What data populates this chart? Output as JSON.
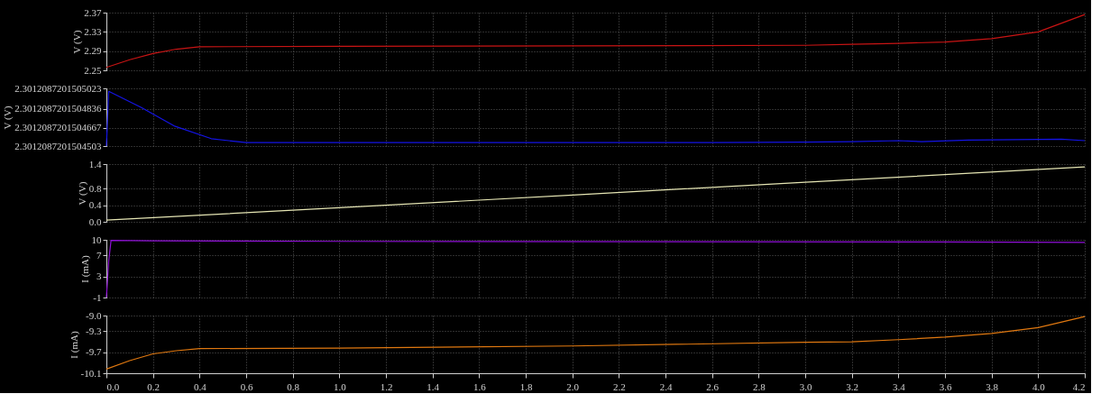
{
  "chart_data": [
    {
      "type": "line",
      "ylabel": "V (V)",
      "xlim": [
        0.0,
        4.2
      ],
      "xticks": [
        0.0,
        0.2,
        0.4,
        0.6,
        0.8,
        1.0,
        1.2,
        1.4,
        1.6,
        1.8,
        2.0,
        2.2,
        2.4,
        2.6,
        2.8,
        3.0,
        3.2,
        3.4,
        3.6,
        3.8,
        4.0,
        4.2
      ],
      "ylim": [
        2.25,
        2.37
      ],
      "yticks": [
        2.25,
        2.29,
        2.33,
        2.37
      ],
      "grid": true,
      "tick_labels": "y",
      "series": [
        {
          "color": "#c81414",
          "x": [
            0.0,
            0.1,
            0.2,
            0.3,
            0.4,
            1.0,
            2.0,
            3.0,
            3.2,
            3.4,
            3.6,
            3.8,
            4.0,
            4.2
          ],
          "values": [
            2.256,
            2.272,
            2.285,
            2.294,
            2.299,
            2.3,
            2.301,
            2.302,
            2.304,
            2.306,
            2.309,
            2.316,
            2.33,
            2.366
          ]
        }
      ]
    },
    {
      "type": "line",
      "ylabel": "V (V)",
      "xlim": [
        0.0,
        4.2
      ],
      "xticks": [
        0.0,
        0.2,
        0.4,
        0.6,
        0.8,
        1.0,
        1.2,
        1.4,
        1.6,
        1.8,
        2.0,
        2.2,
        2.4,
        2.6,
        2.8,
        3.0,
        3.2,
        3.4,
        3.6,
        3.8,
        4.0,
        4.2
      ],
      "ylim": [
        2.3012087201504503,
        2.3012087201505023
      ],
      "yticks": [
        {
          "value": 2.3012087201504503,
          "label": "2.3012087201504503"
        },
        {
          "value": 2.3012087201504667,
          "label": "2.3012087201504667"
        },
        {
          "value": 2.3012087201504836,
          "label": "2.3012087201504836"
        },
        {
          "value": 2.3012087201505023,
          "label": "2.3012087201505023"
        }
      ],
      "grid": true,
      "tick_labels": "y",
      "series": [
        {
          "color": "#1414e6",
          "x": [
            0.0,
            0.01,
            0.15,
            0.29,
            0.45,
            0.6,
            1.0,
            2.0,
            2.6,
            3.0,
            3.2,
            3.4,
            3.5,
            3.7,
            3.9,
            4.1,
            4.2
          ],
          "values": [
            2.3012087201504503,
            2.3012087201504996,
            2.301208720150485,
            2.3012087201504685,
            2.301208720150457,
            2.3012087201504534,
            2.3012087201504534,
            2.3012087201504534,
            2.3012087201504534,
            2.301208720150454,
            2.3012087201504543,
            2.301208720150455,
            2.3012087201504543,
            2.3012087201504556,
            2.301208720150456,
            2.3012087201504565,
            2.301208720150455
          ]
        }
      ]
    },
    {
      "type": "line",
      "ylabel": "V (V)",
      "xlim": [
        0.0,
        4.2
      ],
      "xticks": [
        0.0,
        0.2,
        0.4,
        0.6,
        0.8,
        1.0,
        1.2,
        1.4,
        1.6,
        1.8,
        2.0,
        2.2,
        2.4,
        2.6,
        2.8,
        3.0,
        3.2,
        3.4,
        3.6,
        3.8,
        4.0,
        4.2
      ],
      "ylim": [
        0.0,
        1.4
      ],
      "yticks": [
        {
          "value": 0,
          "label": "0.0"
        },
        0.4,
        0.8,
        1.4
      ],
      "grid": true,
      "tick_labels": "y",
      "series": [
        {
          "color": "#e6e6b4",
          "x": [
            0.0,
            1.0,
            2.0,
            3.0,
            4.2
          ],
          "values": [
            0.04,
            0.34,
            0.65,
            0.96,
            1.33
          ]
        }
      ]
    },
    {
      "type": "line",
      "ylabel": "I (mA)",
      "xlim": [
        0.0,
        4.2
      ],
      "xticks": [
        0.0,
        0.2,
        0.4,
        0.6,
        0.8,
        1.0,
        1.2,
        1.4,
        1.6,
        1.8,
        2.0,
        2.2,
        2.4,
        2.6,
        2.8,
        3.0,
        3.2,
        3.4,
        3.6,
        3.8,
        4.0,
        4.2
      ],
      "ylim": [
        -1,
        10
      ],
      "yticks": [
        -1,
        3,
        7,
        10
      ],
      "grid": true,
      "tick_labels": "y",
      "series": [
        {
          "color": "#9010d8",
          "x": [
            0.0,
            0.01,
            0.02,
            0.2,
            1.0,
            3.6,
            4.2
          ],
          "values": [
            -1,
            6,
            9.9,
            9.8,
            9.7,
            9.6,
            9.5
          ]
        }
      ]
    },
    {
      "type": "line",
      "ylabel": "I (mA)",
      "xlim": [
        0.0,
        4.2
      ],
      "xticks": [
        {
          "value": 0,
          "label": "0.0"
        },
        0.2,
        0.4,
        0.6,
        0.8,
        {
          "value": 1,
          "label": "1.0"
        },
        1.2,
        1.4,
        1.6,
        1.8,
        {
          "value": 2,
          "label": "2.0"
        },
        2.2,
        2.4,
        2.6,
        2.8,
        {
          "value": 3,
          "label": "3.0"
        },
        3.2,
        3.4,
        3.6,
        3.8,
        {
          "value": 4,
          "label": "4.0"
        },
        4.2
      ],
      "ylim": [
        -10.1,
        -9.0
      ],
      "yticks": [
        -10.1,
        -9.7,
        -9.3,
        {
          "value": -9,
          "label": "-9.0"
        }
      ],
      "grid": true,
      "series": [
        {
          "color": "#e07810",
          "x": [
            0.0,
            0.1,
            0.2,
            0.3,
            0.4,
            1.0,
            2.0,
            3.0,
            3.2,
            3.4,
            3.6,
            3.8,
            4.0,
            4.2
          ],
          "values": [
            -10.02,
            -9.86,
            -9.73,
            -9.67,
            -9.63,
            -9.62,
            -9.58,
            -9.51,
            -9.5,
            -9.46,
            -9.41,
            -9.34,
            -9.23,
            -9.02
          ]
        }
      ]
    }
  ]
}
